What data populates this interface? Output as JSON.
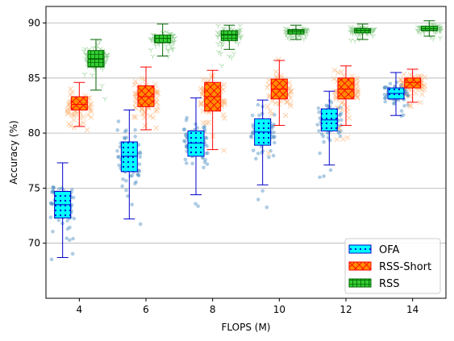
{
  "chart_data": {
    "type": "box",
    "xlabel": "FLOPS (M)",
    "ylabel": "Accuracy (%)",
    "xticks": [
      4,
      6,
      8,
      10,
      12,
      14
    ],
    "yticks": [
      70,
      75,
      80,
      85,
      90
    ],
    "xlim": [
      3.0,
      15.0
    ],
    "ylim": [
      65.0,
      91.5
    ],
    "grid": "horizontal",
    "legend_position": "lower-right",
    "series": [
      {
        "name": "OFA",
        "face_color": "#00ffff",
        "edge_color": "#0000cc",
        "hatch": "dots",
        "scatter_color": "#4c8fc4",
        "scatter_marker": "circle",
        "offset": -0.5,
        "boxes": [
          {
            "x": 4,
            "whisker_low": 68.7,
            "q1": 72.3,
            "median": 73.5,
            "q3": 74.7,
            "whisker_high": 77.3
          },
          {
            "x": 6,
            "whisker_low": 72.2,
            "q1": 76.5,
            "median": 77.9,
            "q3": 79.2,
            "whisker_high": 82.1
          },
          {
            "x": 8,
            "whisker_low": 74.4,
            "q1": 77.9,
            "median": 79.1,
            "q3": 80.2,
            "whisker_high": 83.2
          },
          {
            "x": 10,
            "whisker_low": 75.3,
            "q1": 78.9,
            "median": 80.1,
            "q3": 81.3,
            "whisker_high": 83.0
          },
          {
            "x": 12,
            "whisker_low": 77.1,
            "q1": 80.2,
            "median": 81.2,
            "q3": 82.2,
            "whisker_high": 83.8
          },
          {
            "x": 14,
            "whisker_low": 81.6,
            "q1": 83.1,
            "median": 83.6,
            "q3": 84.1,
            "whisker_high": 85.5
          }
        ]
      },
      {
        "name": "RSS-Short",
        "face_color": "#ff8c00",
        "edge_color": "#ff0000",
        "hatch": "cross",
        "scatter_color": "#ffb070",
        "scatter_marker": "x",
        "offset": 0.0,
        "boxes": [
          {
            "x": 4,
            "whisker_low": 80.6,
            "q1": 82.1,
            "median": 82.6,
            "q3": 83.3,
            "whisker_high": 84.6
          },
          {
            "x": 6,
            "whisker_low": 80.3,
            "q1": 82.4,
            "median": 83.3,
            "q3": 84.3,
            "whisker_high": 86.0
          },
          {
            "x": 8,
            "whisker_low": 78.5,
            "q1": 82.0,
            "median": 83.3,
            "q3": 84.6,
            "whisker_high": 85.7
          },
          {
            "x": 10,
            "whisker_low": 80.7,
            "q1": 83.1,
            "median": 84.0,
            "q3": 84.9,
            "whisker_high": 86.6
          },
          {
            "x": 12,
            "whisker_low": 80.7,
            "q1": 83.1,
            "median": 84.0,
            "q3": 85.0,
            "whisker_high": 86.1
          },
          {
            "x": 14,
            "whisker_low": 82.8,
            "q1": 84.1,
            "median": 84.6,
            "q3": 85.0,
            "whisker_high": 85.8
          }
        ]
      },
      {
        "name": "RSS",
        "face_color": "#33cc33",
        "edge_color": "#006400",
        "hatch": "grid",
        "scatter_color": "#88cc88",
        "scatter_marker": "tri",
        "offset": 0.5,
        "boxes": [
          {
            "x": 4,
            "whisker_low": 83.9,
            "q1": 86.0,
            "median": 86.7,
            "q3": 87.5,
            "whisker_high": 88.5
          },
          {
            "x": 6,
            "whisker_low": 87.0,
            "q1": 88.2,
            "median": 88.6,
            "q3": 88.9,
            "whisker_high": 89.9
          },
          {
            "x": 8,
            "whisker_low": 87.6,
            "q1": 88.4,
            "median": 88.9,
            "q3": 89.3,
            "whisker_high": 89.8
          },
          {
            "x": 10,
            "whisker_low": 88.5,
            "q1": 89.0,
            "median": 89.2,
            "q3": 89.4,
            "whisker_high": 89.8
          },
          {
            "x": 12,
            "whisker_low": 88.5,
            "q1": 89.1,
            "median": 89.3,
            "q3": 89.5,
            "whisker_high": 89.9
          },
          {
            "x": 14,
            "whisker_low": 88.8,
            "q1": 89.3,
            "median": 89.5,
            "q3": 89.7,
            "whisker_high": 90.2
          }
        ]
      }
    ]
  }
}
